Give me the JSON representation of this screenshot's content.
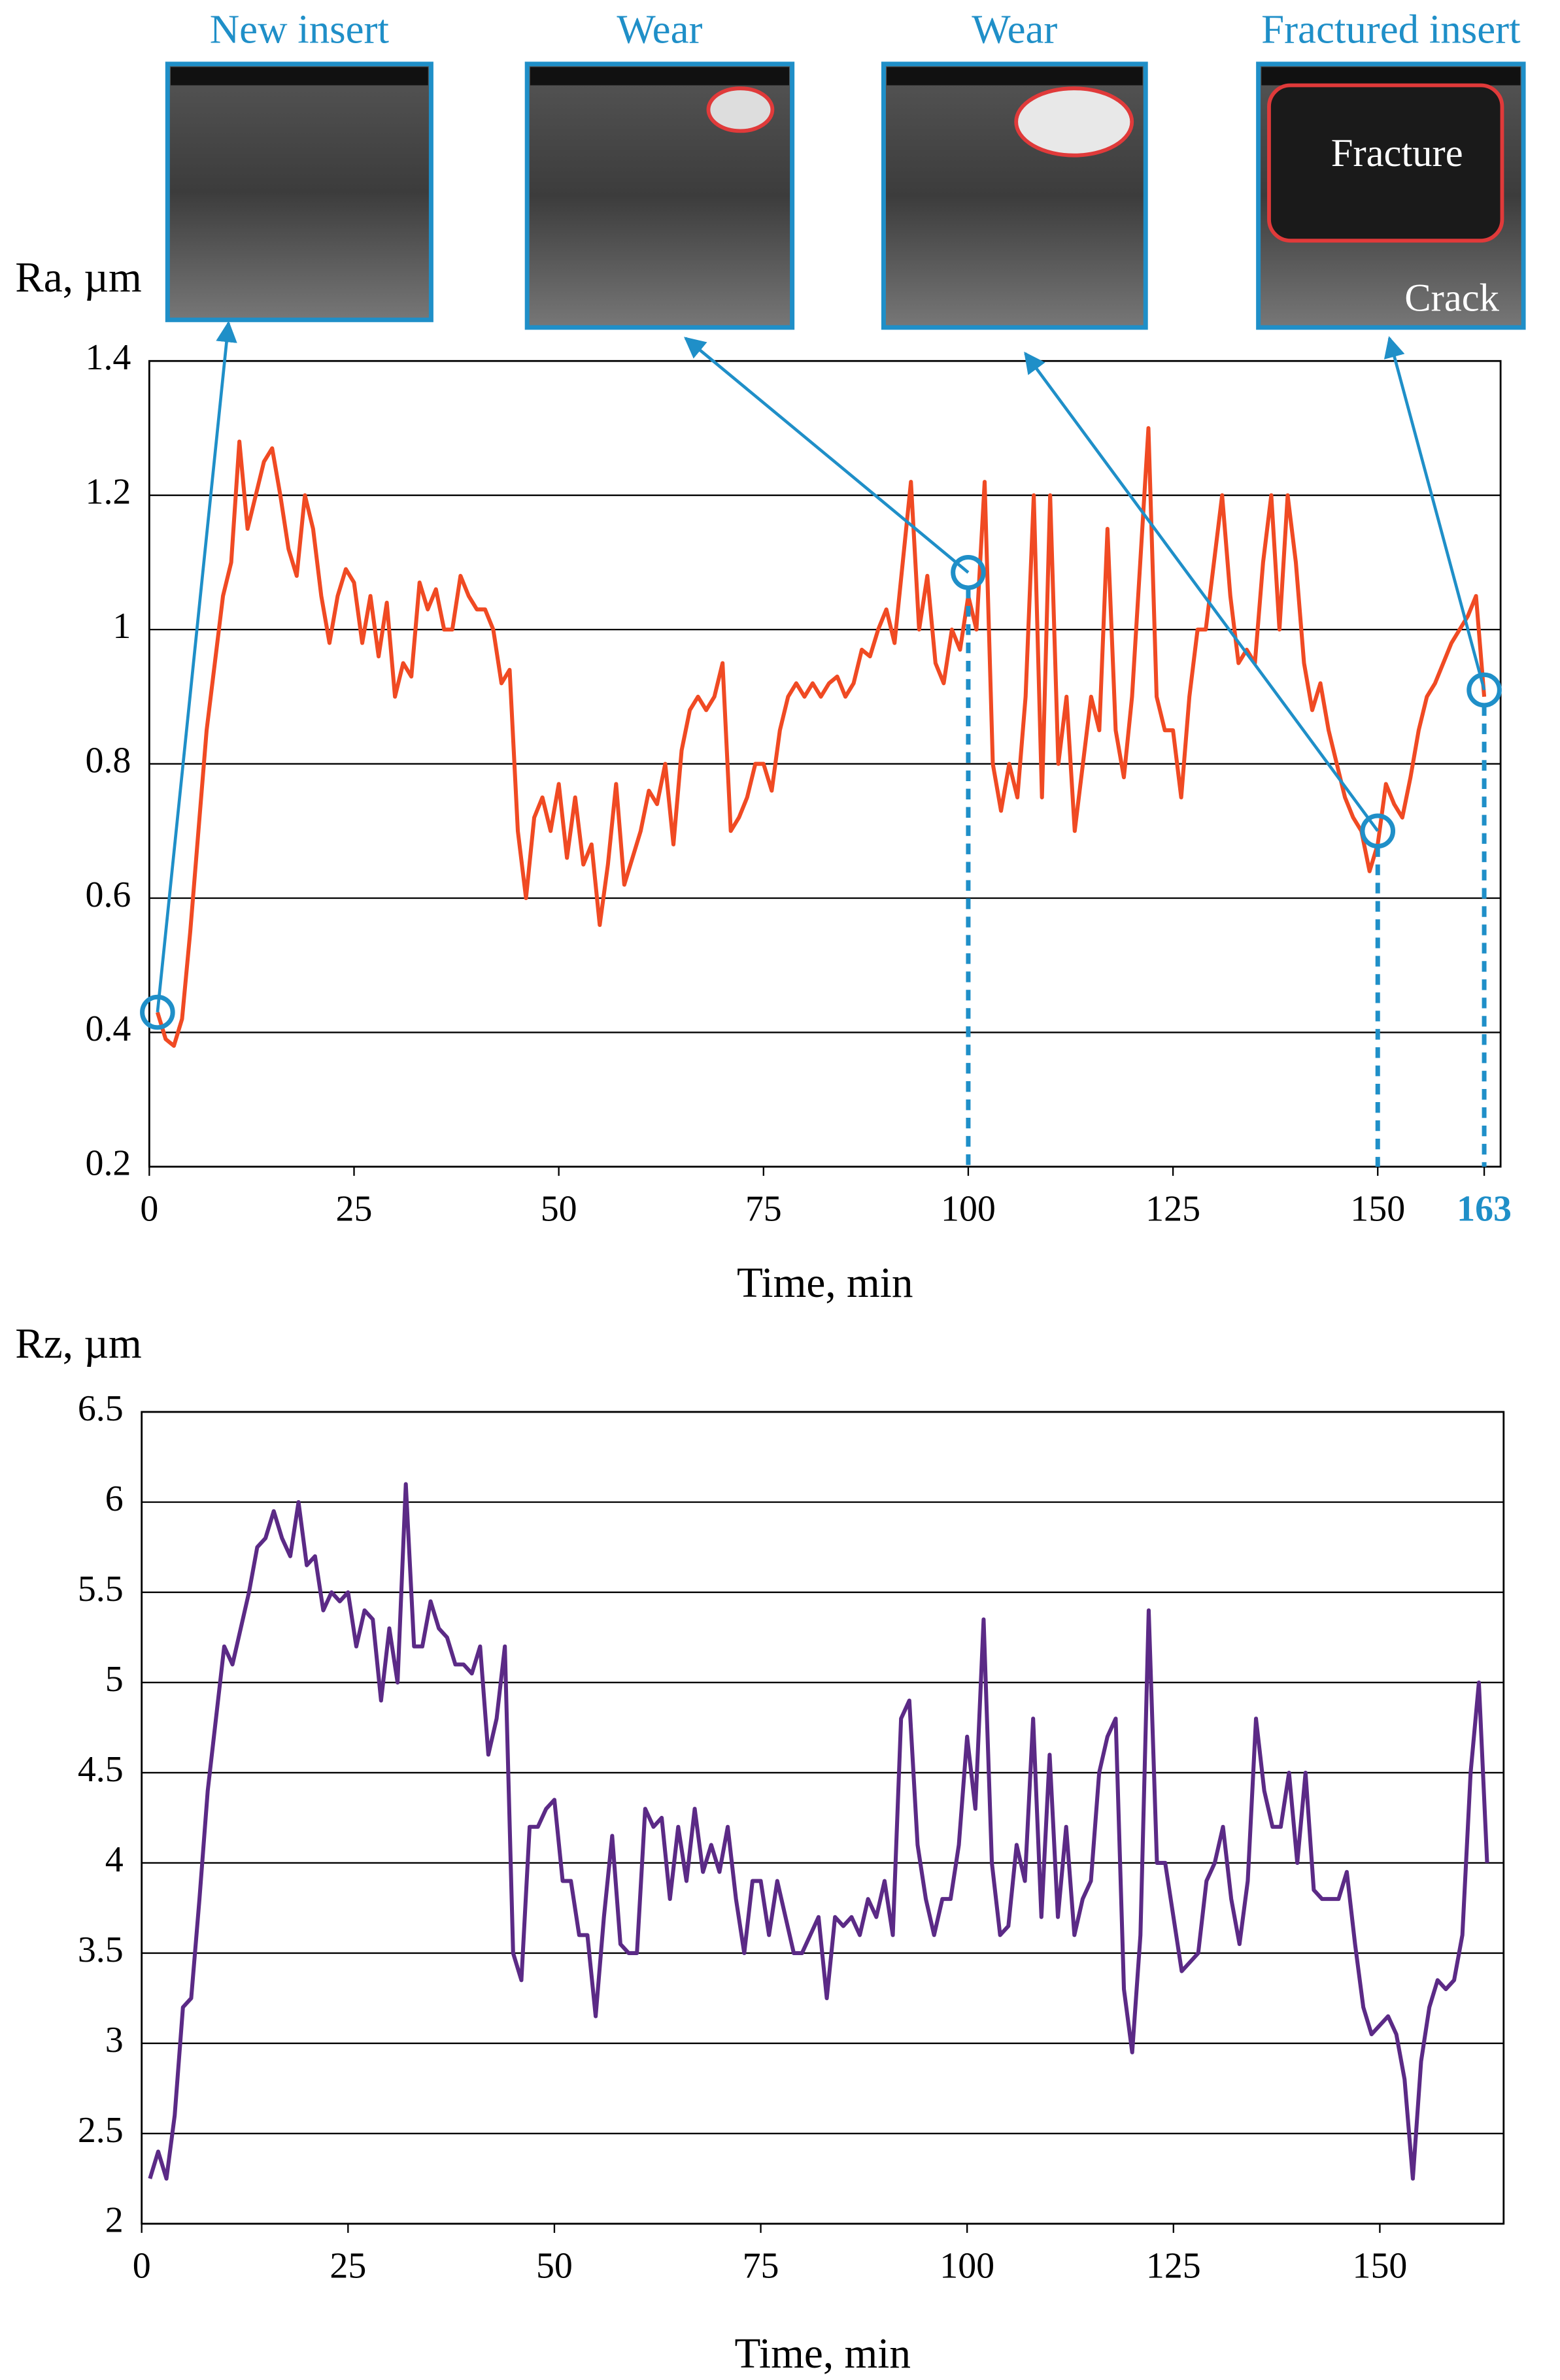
{
  "chart_data": [
    {
      "type": "line",
      "ylabel": "Ra, µm",
      "xlabel": "Time, min",
      "color": "#f04a23",
      "grid": true,
      "xlim": [
        0,
        165
      ],
      "ylim": [
        0.2,
        1.4
      ],
      "xticks": [
        0,
        25,
        50,
        75,
        100,
        125,
        150,
        163
      ],
      "yticks": [
        0.2,
        0.4,
        0.6,
        0.8,
        1,
        1.2,
        1.4
      ],
      "x": [
        1,
        2,
        3,
        4,
        5,
        6,
        7,
        8,
        9,
        10,
        11,
        12,
        13,
        14,
        15,
        16,
        17,
        18,
        19,
        20,
        21,
        22,
        23,
        24,
        25,
        26,
        27,
        28,
        29,
        30,
        31,
        32,
        33,
        34,
        35,
        36,
        37,
        38,
        39,
        40,
        41,
        42,
        43,
        44,
        45,
        46,
        47,
        48,
        49,
        50,
        51,
        52,
        53,
        54,
        55,
        56,
        57,
        58,
        59,
        60,
        61,
        62,
        63,
        64,
        65,
        66,
        67,
        68,
        69,
        70,
        71,
        72,
        73,
        74,
        75,
        76,
        77,
        78,
        79,
        80,
        81,
        82,
        83,
        84,
        85,
        86,
        87,
        88,
        89,
        90,
        91,
        92,
        93,
        94,
        95,
        96,
        97,
        98,
        99,
        100,
        101,
        102,
        103,
        104,
        105,
        106,
        107,
        108,
        109,
        110,
        111,
        112,
        113,
        114,
        115,
        116,
        117,
        118,
        119,
        120,
        121,
        122,
        123,
        124,
        125,
        126,
        127,
        128,
        129,
        130,
        131,
        132,
        133,
        134,
        135,
        136,
        137,
        138,
        139,
        140,
        141,
        142,
        143,
        144,
        145,
        146,
        147,
        148,
        149,
        150,
        151,
        152,
        153,
        154,
        155,
        156,
        157,
        158,
        159,
        160,
        161,
        162,
        163
      ],
      "values": [
        0.43,
        0.39,
        0.38,
        0.42,
        0.55,
        0.7,
        0.85,
        0.95,
        1.05,
        1.1,
        1.28,
        1.15,
        1.2,
        1.25,
        1.27,
        1.2,
        1.12,
        1.08,
        1.2,
        1.15,
        1.05,
        0.98,
        1.05,
        1.09,
        1.07,
        0.98,
        1.05,
        0.96,
        1.04,
        0.9,
        0.95,
        0.93,
        1.07,
        1.03,
        1.06,
        1,
        1,
        1.08,
        1.05,
        1.03,
        1.03,
        1,
        0.92,
        0.94,
        0.7,
        0.6,
        0.72,
        0.75,
        0.7,
        0.77,
        0.66,
        0.75,
        0.65,
        0.68,
        0.56,
        0.65,
        0.77,
        0.62,
        0.66,
        0.7,
        0.76,
        0.74,
        0.8,
        0.68,
        0.82,
        0.88,
        0.9,
        0.88,
        0.9,
        0.95,
        0.7,
        0.72,
        0.75,
        0.8,
        0.8,
        0.76,
        0.85,
        0.9,
        0.92,
        0.9,
        0.92,
        0.9,
        0.92,
        0.93,
        0.9,
        0.92,
        0.97,
        0.96,
        1,
        1.03,
        0.98,
        1.1,
        1.22,
        1,
        1.08,
        0.95,
        0.92,
        1,
        0.97,
        1.05,
        1,
        1.22,
        0.8,
        0.73,
        0.8,
        0.75,
        0.9,
        1.2,
        0.75,
        1.2,
        0.8,
        0.9,
        0.7,
        0.8,
        0.9,
        0.85,
        1.15,
        0.85,
        0.78,
        0.9,
        1.1,
        1.3,
        0.9,
        0.85,
        0.85,
        0.75,
        0.9,
        1,
        1,
        1.1,
        1.2,
        1.05,
        0.95,
        0.97,
        0.95,
        1.1,
        1.2,
        1,
        1.2,
        1.1,
        0.95,
        0.88,
        0.92,
        0.85,
        0.8,
        0.75,
        0.72,
        0.7,
        0.64,
        0.68,
        0.77,
        0.74,
        0.72,
        0.78,
        0.85,
        0.9,
        0.92,
        0.95,
        0.98,
        1,
        1.02,
        1.05,
        0.9
      ],
      "callouts": [
        {
          "label": "New insert",
          "x": 1,
          "y": 0.43
        },
        {
          "label": "Wear",
          "x": 100,
          "y": 1.085,
          "dashed": true
        },
        {
          "label": "Wear",
          "x": 150,
          "y": 0.7,
          "dashed": true
        },
        {
          "label": "Fractured insert",
          "x": 163,
          "y": 0.91,
          "dashed": true,
          "notes": [
            "Fracture",
            "Crack"
          ]
        }
      ],
      "callout_color": "#1f8fc8"
    },
    {
      "type": "line",
      "ylabel": "Rz, µm",
      "xlabel": "Time, min",
      "color": "#5b2a86",
      "grid": true,
      "xlim": [
        0,
        165
      ],
      "ylim": [
        2,
        6.5
      ],
      "xticks": [
        0,
        25,
        50,
        75,
        100,
        125,
        150
      ],
      "yticks": [
        2,
        2.5,
        3,
        3.5,
        4,
        4.5,
        5,
        5.5,
        6,
        6.5
      ],
      "x": [
        1,
        2,
        3,
        4,
        5,
        6,
        7,
        8,
        9,
        10,
        11,
        12,
        13,
        14,
        15,
        16,
        17,
        18,
        19,
        20,
        21,
        22,
        23,
        24,
        25,
        26,
        27,
        28,
        29,
        30,
        31,
        32,
        33,
        34,
        35,
        36,
        37,
        38,
        39,
        40,
        41,
        42,
        43,
        44,
        45,
        46,
        47,
        48,
        49,
        50,
        51,
        52,
        53,
        54,
        55,
        56,
        57,
        58,
        59,
        60,
        61,
        62,
        63,
        64,
        65,
        66,
        67,
        68,
        69,
        70,
        71,
        72,
        73,
        74,
        75,
        76,
        77,
        78,
        79,
        80,
        81,
        82,
        83,
        84,
        85,
        86,
        87,
        88,
        89,
        90,
        91,
        92,
        93,
        94,
        95,
        96,
        97,
        98,
        99,
        100,
        101,
        102,
        103,
        104,
        105,
        106,
        107,
        108,
        109,
        110,
        111,
        112,
        113,
        114,
        115,
        116,
        117,
        118,
        119,
        120,
        121,
        122,
        123,
        124,
        125,
        126,
        127,
        128,
        129,
        130,
        131,
        132,
        133,
        134,
        135,
        136,
        137,
        138,
        139,
        140,
        141,
        142,
        143,
        144,
        145,
        146,
        147,
        148,
        149,
        150,
        151,
        152,
        153,
        154,
        155,
        156,
        157,
        158,
        159,
        160,
        161,
        162,
        163
      ],
      "values": [
        2.25,
        2.4,
        2.25,
        2.6,
        3.2,
        3.25,
        3.8,
        4.4,
        4.8,
        5.2,
        5.1,
        5.3,
        5.5,
        5.75,
        5.8,
        5.95,
        5.8,
        5.7,
        6,
        5.65,
        5.7,
        5.4,
        5.5,
        5.45,
        5.5,
        5.2,
        5.4,
        5.35,
        4.9,
        5.3,
        5,
        6.1,
        5.2,
        5.2,
        5.45,
        5.3,
        5.25,
        5.1,
        5.1,
        5.05,
        5.2,
        4.6,
        4.8,
        5.2,
        3.5,
        3.35,
        4.2,
        4.2,
        4.3,
        4.35,
        3.9,
        3.9,
        3.6,
        3.6,
        3.15,
        3.7,
        4.15,
        3.55,
        3.5,
        3.5,
        4.3,
        4.2,
        4.25,
        3.8,
        4.2,
        3.9,
        4.3,
        3.95,
        4.1,
        3.95,
        4.2,
        3.8,
        3.5,
        3.9,
        3.9,
        3.6,
        3.9,
        3.7,
        3.5,
        3.5,
        3.6,
        3.7,
        3.25,
        3.7,
        3.65,
        3.7,
        3.6,
        3.8,
        3.7,
        3.9,
        3.6,
        4.8,
        4.9,
        4.1,
        3.8,
        3.6,
        3.8,
        3.8,
        4.1,
        4.7,
        4.3,
        5.35,
        4,
        3.6,
        3.65,
        4.1,
        3.9,
        4.8,
        3.7,
        4.6,
        3.7,
        4.2,
        3.6,
        3.8,
        3.9,
        4.5,
        4.7,
        4.8,
        3.3,
        2.95,
        3.6,
        5.4,
        4,
        4,
        3.7,
        3.4,
        3.45,
        3.5,
        3.9,
        4,
        4.2,
        3.8,
        3.55,
        3.9,
        4.8,
        4.4,
        4.2,
        4.2,
        4.5,
        4,
        4.5,
        3.85,
        3.8,
        3.8,
        3.8,
        3.95,
        3.55,
        3.2,
        3.05,
        3.1,
        3.15,
        3.05,
        2.8,
        2.25,
        2.9,
        3.2,
        3.35,
        3.3,
        3.35,
        3.6,
        4.5,
        5,
        4
      ]
    }
  ]
}
